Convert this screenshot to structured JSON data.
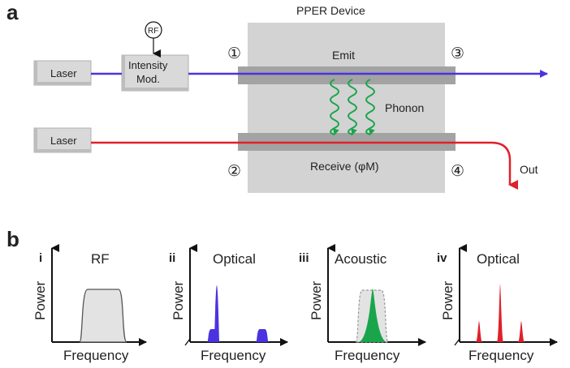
{
  "panel_a": {
    "label": "a",
    "device_title": "PPER Device",
    "rf_label": "RF",
    "laser_top": "Laser",
    "laser_bottom": "Laser",
    "modulator_line1": "Intensity",
    "modulator_line2": "Mod.",
    "emit_label": "Emit",
    "receive_label": "Receive (φM)",
    "phonon_label": "Phonon",
    "out_label": "Out",
    "port1": "①",
    "port2": "②",
    "port3": "③",
    "port4": "④",
    "colors": {
      "blue_beam": "#4b33e0",
      "red_beam": "#e0202a",
      "phonon": "#1aa54b",
      "device": "#d3d3d3",
      "waveguide": "#a3a3a3"
    }
  },
  "panel_b": {
    "label": "b",
    "plots": [
      {
        "index": "i",
        "title": "RF",
        "ylabel": "Power",
        "xlabel": "Frequency"
      },
      {
        "index": "ii",
        "title": "Optical",
        "ylabel": "Power",
        "xlabel": "Frequency"
      },
      {
        "index": "iii",
        "title": "Acoustic",
        "ylabel": "Power",
        "xlabel": "Frequency"
      },
      {
        "index": "iv",
        "title": "Optical",
        "ylabel": "Power",
        "xlabel": "Frequency"
      }
    ]
  }
}
